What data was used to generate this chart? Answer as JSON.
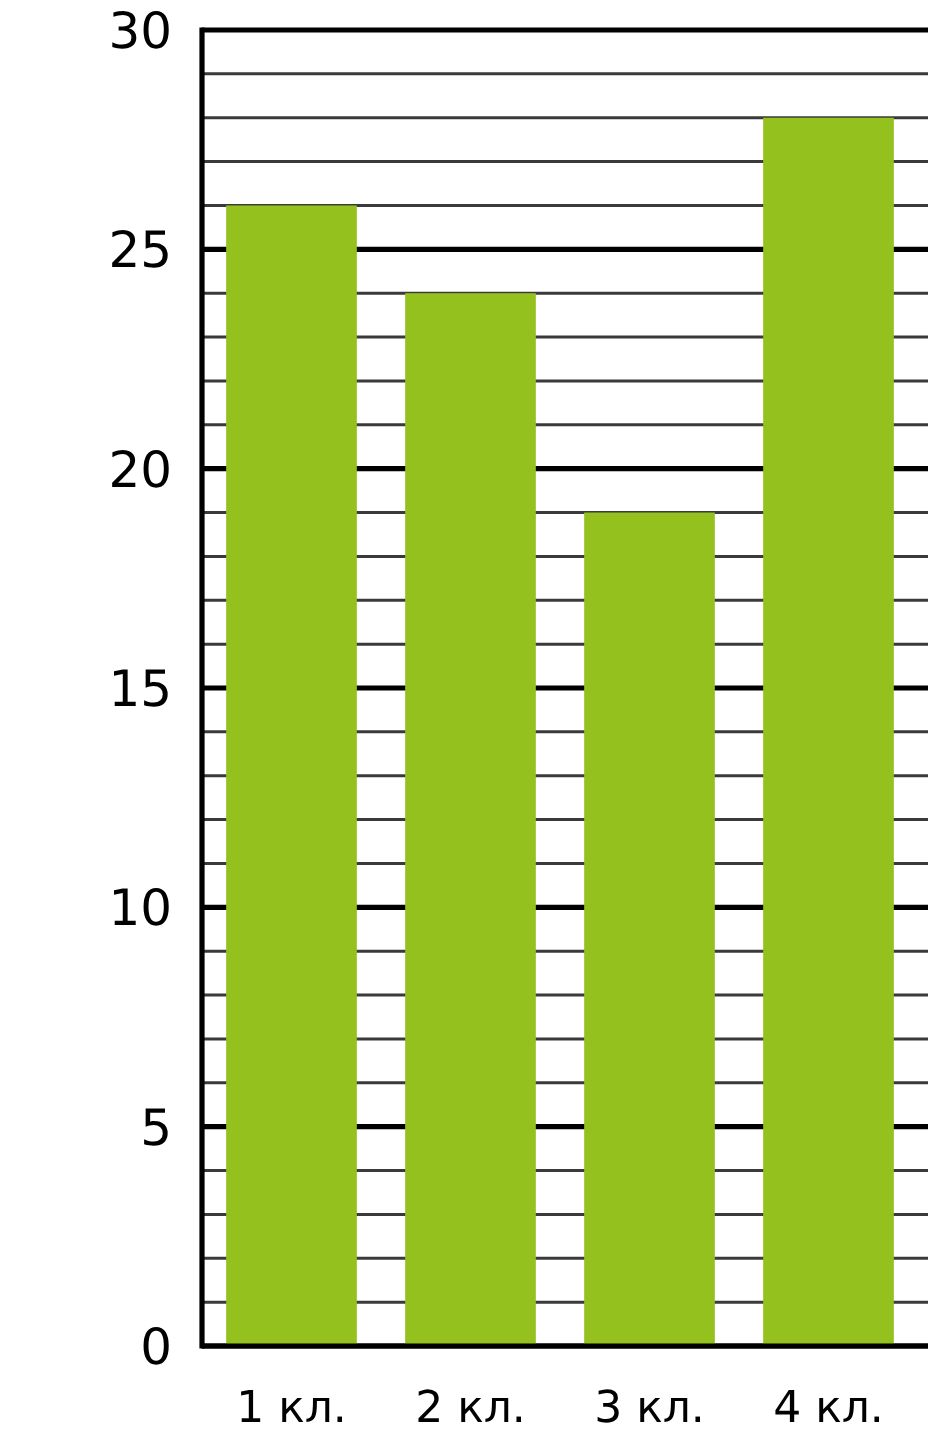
{
  "chart_data": {
    "type": "bar",
    "categories": [
      "1 кл.",
      "2 кл.",
      "3 кл.",
      "4 кл."
    ],
    "values": [
      26,
      24,
      19,
      28
    ],
    "color": "#95c11f",
    "ylim": [
      0,
      30
    ],
    "yticks": [
      0,
      {
        "value": 1,
        "label": null
      },
      {
        "value": 2,
        "label": null
      },
      {
        "value": 3,
        "label": null
      },
      {
        "value": 4,
        "label": null
      },
      5,
      {
        "value": 6,
        "label": null
      },
      {
        "value": 7,
        "label": null
      },
      {
        "value": 8,
        "label": null
      },
      {
        "value": 9,
        "label": null
      },
      10,
      {
        "value": 11,
        "label": null
      },
      {
        "value": 12,
        "label": null
      },
      {
        "value": 13,
        "label": null
      },
      {
        "value": 14,
        "label": null
      },
      15,
      {
        "value": 16,
        "label": null
      },
      {
        "value": 17,
        "label": null
      },
      {
        "value": 18,
        "label": null
      },
      {
        "value": 19,
        "label": null
      },
      20,
      {
        "value": 21,
        "label": null
      },
      {
        "value": 22,
        "label": null
      },
      {
        "value": 23,
        "label": null
      },
      {
        "value": 24,
        "label": null
      },
      25,
      {
        "value": 26,
        "label": null
      },
      {
        "value": 27,
        "label": null
      },
      {
        "value": 28,
        "label": null
      },
      {
        "value": 29,
        "label": null
      },
      30
    ],
    "grid": "y"
  }
}
